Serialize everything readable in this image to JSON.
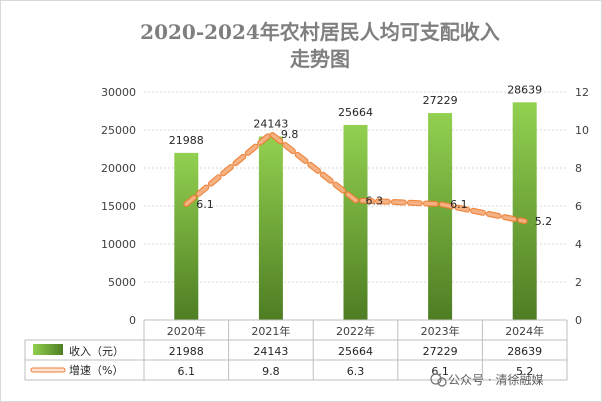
{
  "chart_data": {
    "type": "bar",
    "title": "2020-2024年农村居民人均可支配收入走势图",
    "title_lines": [
      "2020-2024年农村居民人均可支配收入",
      "走势图"
    ],
    "categories": [
      "2020年",
      "2021年",
      "2022年",
      "2023年",
      "2024年"
    ],
    "series": [
      {
        "name": "收入（元）",
        "type": "bar",
        "axis": "left",
        "values": [
          21988,
          24143,
          25664,
          27229,
          28639
        ]
      },
      {
        "name": "增速（%）",
        "type": "line",
        "axis": "right",
        "values": [
          6.1,
          9.8,
          6.3,
          6.1,
          5.2
        ]
      }
    ],
    "ylim_left": [
      0,
      30000
    ],
    "yticks_left": [
      0,
      5000,
      10000,
      15000,
      20000,
      25000,
      30000
    ],
    "ylim_right": [
      0,
      12
    ],
    "yticks_right": [
      0,
      2,
      4,
      6,
      8,
      10,
      12
    ],
    "grid": true,
    "legend": "data-table below chart",
    "colors": {
      "bar_top": "#92d050",
      "bar_bottom": "#4e7d23",
      "line": "#f4b183",
      "line_edge": "#ed7d31"
    }
  },
  "watermark": "公众号 · 清徐融媒"
}
